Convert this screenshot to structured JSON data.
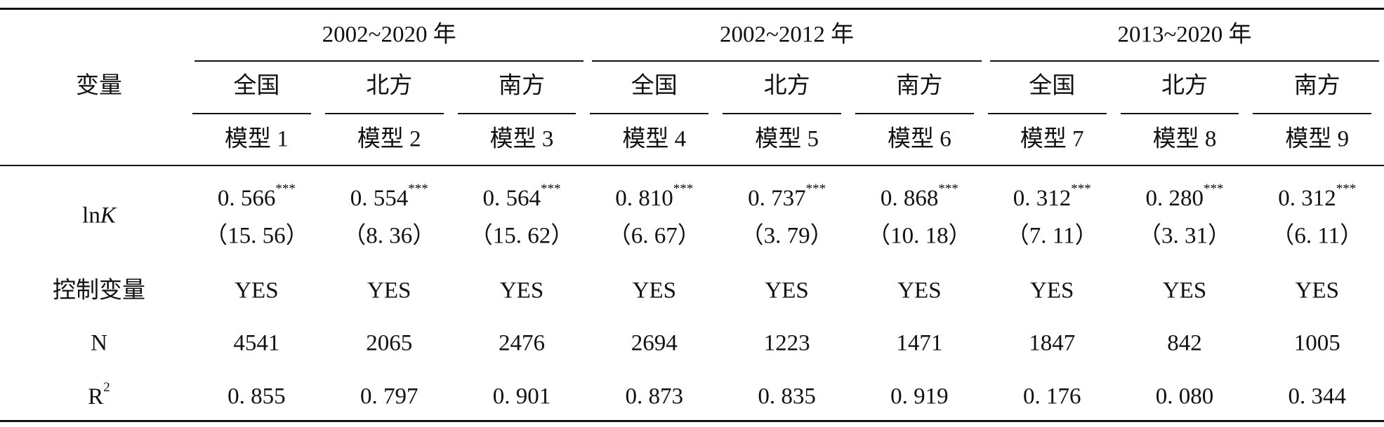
{
  "table": {
    "header": {
      "variable": "变量",
      "groups": [
        {
          "label": "2002~2020 年",
          "regions": [
            "全国",
            "北方",
            "南方"
          ]
        },
        {
          "label": "2002~2012 年",
          "regions": [
            "全国",
            "北方",
            "南方"
          ]
        },
        {
          "label": "2013~2020 年",
          "regions": [
            "全国",
            "北方",
            "南方"
          ]
        }
      ],
      "models": [
        "模型 1",
        "模型 2",
        "模型 3",
        "模型 4",
        "模型 5",
        "模型 6",
        "模型 7",
        "模型 8",
        "模型 9"
      ]
    },
    "rows": {
      "lnk": {
        "label": {
          "text": "ln",
          "italic": "K"
        },
        "coefficients": [
          "0. 566",
          "0. 554",
          "0. 564",
          "0. 810",
          "0. 737",
          "0. 868",
          "0. 312",
          "0. 280",
          "0. 312"
        ],
        "stars": [
          "***",
          "***",
          "***",
          "***",
          "***",
          "***",
          "***",
          "***",
          "***"
        ],
        "t_stats": [
          "（15. 56）",
          "（8. 36）",
          "（15. 62）",
          "（6. 67）",
          "（3. 79）",
          "（10. 18）",
          "（7. 11）",
          "（3. 31）",
          "（6. 11）"
        ]
      },
      "controls": {
        "label": "控制变量",
        "values": [
          "YES",
          "YES",
          "YES",
          "YES",
          "YES",
          "YES",
          "YES",
          "YES",
          "YES"
        ]
      },
      "n": {
        "label": "N",
        "values": [
          4541,
          2065,
          2476,
          2694,
          1223,
          1471,
          1847,
          842,
          1005
        ]
      },
      "r2": {
        "label": {
          "text": "R",
          "sup": "2"
        },
        "values": [
          "0. 855",
          "0. 797",
          "0. 901",
          "0. 873",
          "0. 835",
          "0. 919",
          "0. 176",
          "0. 080",
          "0. 344"
        ]
      }
    }
  }
}
